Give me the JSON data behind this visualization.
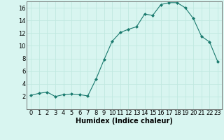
{
  "x": [
    0,
    1,
    2,
    3,
    4,
    5,
    6,
    7,
    8,
    9,
    10,
    11,
    12,
    13,
    14,
    15,
    16,
    17,
    18,
    19,
    20,
    21,
    22,
    23
  ],
  "y": [
    2.2,
    2.5,
    2.7,
    2.0,
    2.3,
    2.4,
    2.3,
    2.1,
    4.7,
    7.8,
    10.7,
    12.1,
    12.6,
    13.0,
    15.0,
    14.8,
    16.5,
    16.8,
    16.8,
    16.0,
    14.3,
    11.5,
    10.6,
    7.5
  ],
  "xlabel": "Humidex (Indice chaleur)",
  "xlim": [
    -0.5,
    23.5
  ],
  "ylim": [
    0,
    17
  ],
  "yticks": [
    2,
    4,
    6,
    8,
    10,
    12,
    14,
    16
  ],
  "xticks": [
    0,
    1,
    2,
    3,
    4,
    5,
    6,
    7,
    8,
    9,
    10,
    11,
    12,
    13,
    14,
    15,
    16,
    17,
    18,
    19,
    20,
    21,
    22,
    23
  ],
  "line_color": "#1a7a6e",
  "marker": "D",
  "marker_size": 2.0,
  "bg_color": "#d8f5f0",
  "grid_color": "#c0e8e0",
  "label_fontsize": 7,
  "tick_fontsize": 6
}
